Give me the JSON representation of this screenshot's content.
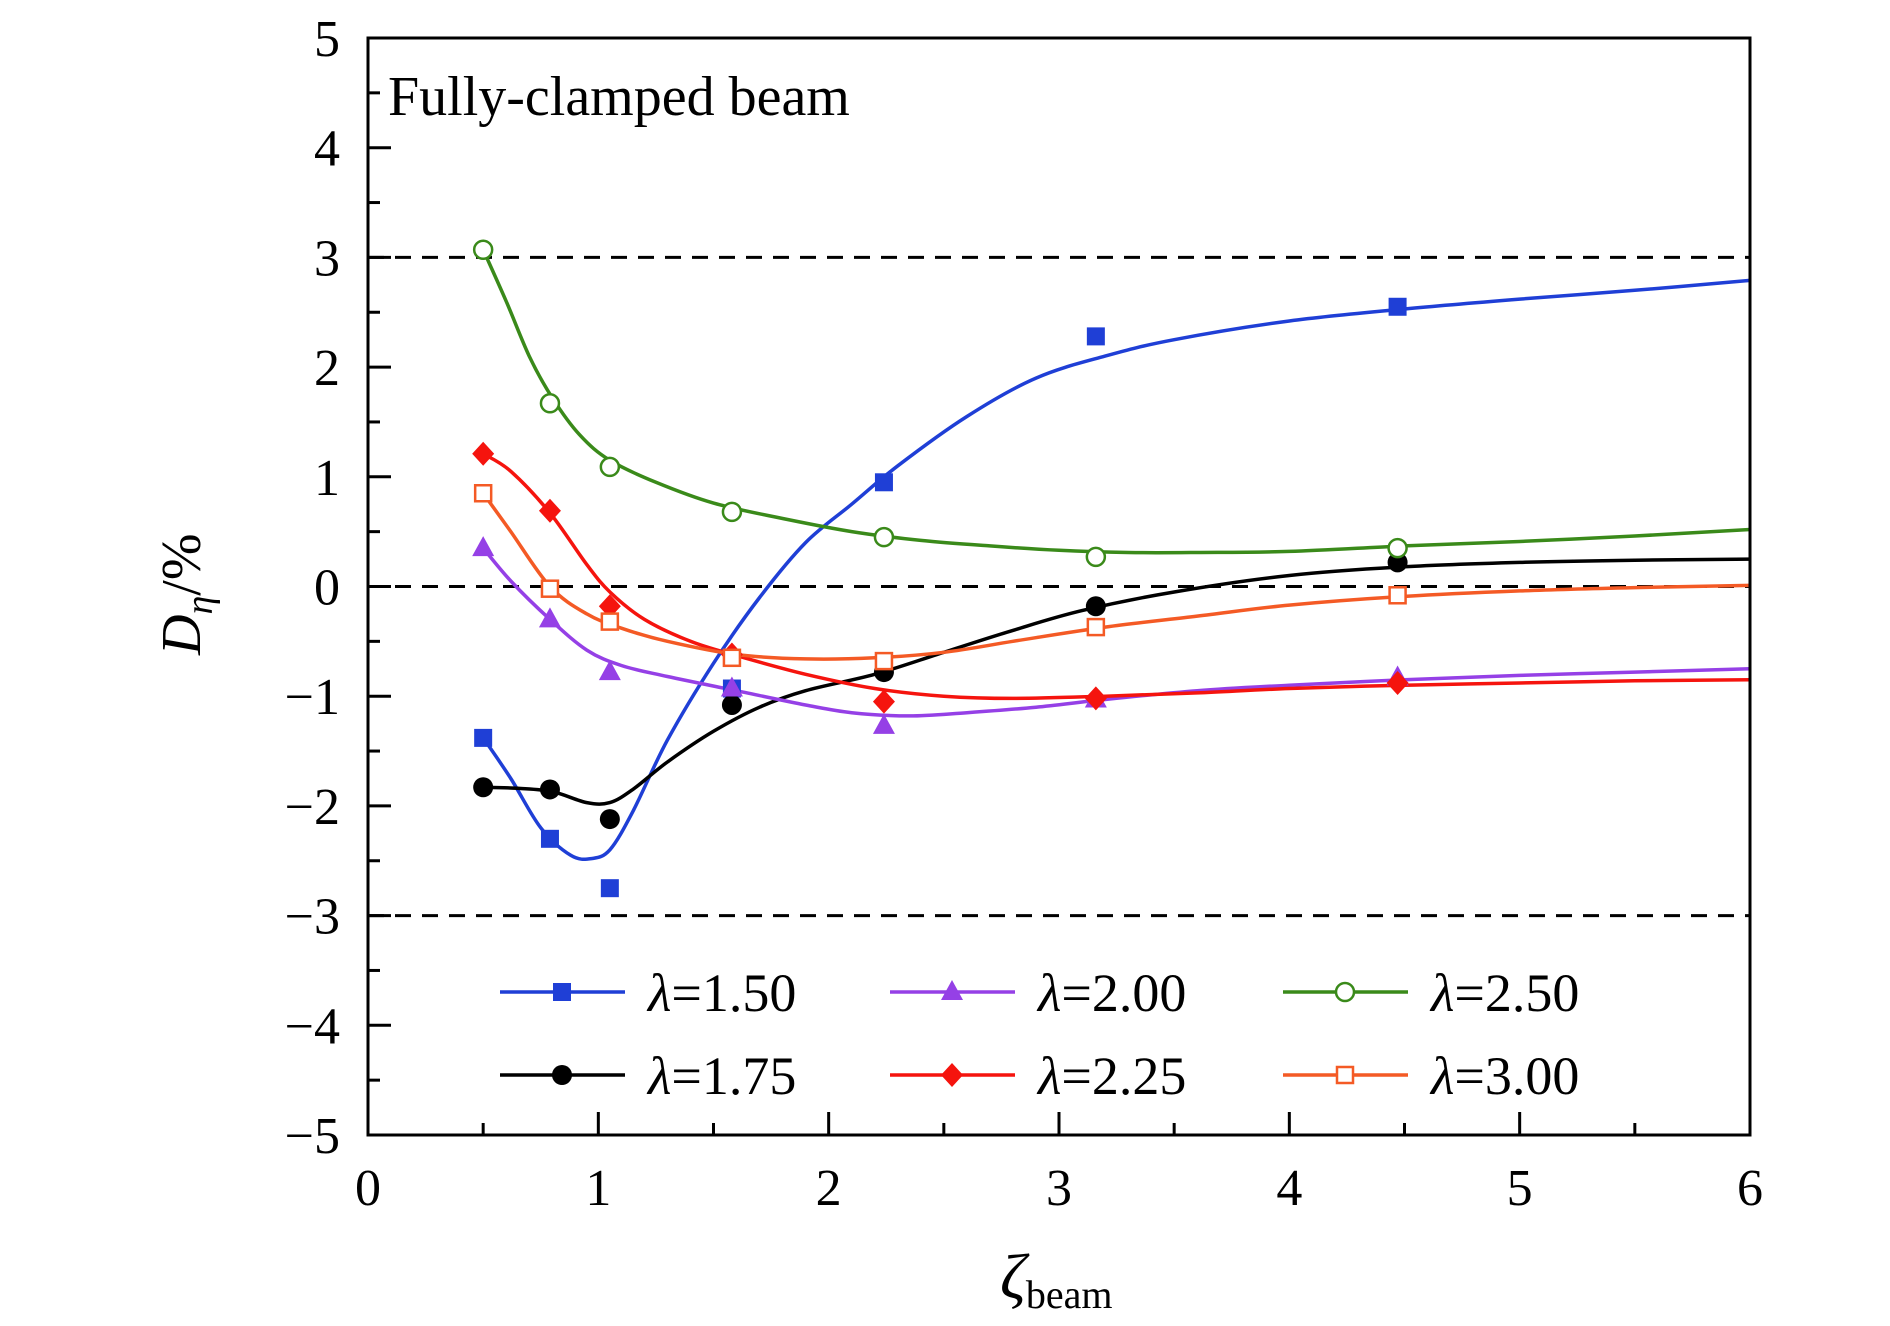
{
  "chart_data": {
    "type": "line",
    "annotation": "Fully-clamped beam",
    "xlabel": {
      "main": "ζ",
      "sub": "beam"
    },
    "ylabel": {
      "main": "D",
      "sub": "η",
      "suffix": "/%"
    },
    "xlim": [
      0,
      6
    ],
    "ylim": [
      -5,
      5
    ],
    "xticks": [
      "0",
      "1",
      "2",
      "3",
      "4",
      "5",
      "6"
    ],
    "yticks": [
      "−5",
      "−4",
      "−3",
      "−2",
      "−1",
      "0",
      "1",
      "2",
      "3",
      "4",
      "5"
    ],
    "reference_lines": [
      3,
      0,
      -3
    ],
    "grid": false,
    "legend_position": "bottom-center",
    "series": [
      {
        "name": "λ=1.50",
        "prefix": "λ",
        "value_text": "=1.50",
        "color": "#1f3fd6",
        "marker": "square-filled",
        "x": [
          0.5,
          0.79,
          1.05,
          1.58,
          2.24,
          3.16,
          4.47
        ],
        "y": [
          -1.38,
          -2.3,
          -2.75,
          -0.93,
          0.95,
          2.28,
          2.55
        ],
        "curve": [
          [
            0.5,
            -1.38
          ],
          [
            0.62,
            -1.75
          ],
          [
            0.75,
            -2.2
          ],
          [
            0.88,
            -2.45
          ],
          [
            0.97,
            -2.48
          ],
          [
            1.05,
            -2.4
          ],
          [
            1.15,
            -2.05
          ],
          [
            1.3,
            -1.4
          ],
          [
            1.5,
            -0.7
          ],
          [
            1.7,
            -0.1
          ],
          [
            1.9,
            0.4
          ],
          [
            2.1,
            0.75
          ],
          [
            2.3,
            1.1
          ],
          [
            2.6,
            1.55
          ],
          [
            2.9,
            1.9
          ],
          [
            3.2,
            2.1
          ],
          [
            3.5,
            2.25
          ],
          [
            4.0,
            2.42
          ],
          [
            4.5,
            2.53
          ],
          [
            5.0,
            2.62
          ],
          [
            5.5,
            2.7
          ],
          [
            6.0,
            2.79
          ]
        ]
      },
      {
        "name": "λ=1.75",
        "prefix": "λ",
        "value_text": "=1.75",
        "color": "#000000",
        "marker": "circle-filled",
        "x": [
          0.5,
          0.79,
          1.05,
          1.58,
          2.24,
          3.16,
          4.47
        ],
        "y": [
          -1.83,
          -1.85,
          -2.12,
          -1.08,
          -0.78,
          -0.18,
          0.22
        ],
        "curve": [
          [
            0.5,
            -1.83
          ],
          [
            0.65,
            -1.84
          ],
          [
            0.8,
            -1.87
          ],
          [
            0.95,
            -1.97
          ],
          [
            1.05,
            -1.97
          ],
          [
            1.15,
            -1.85
          ],
          [
            1.3,
            -1.6
          ],
          [
            1.5,
            -1.32
          ],
          [
            1.7,
            -1.1
          ],
          [
            1.9,
            -0.95
          ],
          [
            2.2,
            -0.8
          ],
          [
            2.5,
            -0.6
          ],
          [
            2.8,
            -0.4
          ],
          [
            3.1,
            -0.22
          ],
          [
            3.5,
            -0.05
          ],
          [
            4.0,
            0.1
          ],
          [
            4.5,
            0.18
          ],
          [
            5.0,
            0.22
          ],
          [
            5.5,
            0.24
          ],
          [
            6.0,
            0.25
          ]
        ]
      },
      {
        "name": "λ=2.00",
        "prefix": "λ",
        "value_text": "=2.00",
        "color": "#9540e6",
        "marker": "triangle-filled",
        "x": [
          0.5,
          0.79,
          1.05,
          1.58,
          2.24,
          3.16,
          4.47
        ],
        "y": [
          0.35,
          -0.3,
          -0.78,
          -0.93,
          -1.27,
          -1.03,
          -0.83
        ],
        "curve": [
          [
            0.5,
            0.35
          ],
          [
            0.62,
            0.05
          ],
          [
            0.79,
            -0.3
          ],
          [
            0.95,
            -0.58
          ],
          [
            1.1,
            -0.72
          ],
          [
            1.3,
            -0.82
          ],
          [
            1.6,
            -0.95
          ],
          [
            1.9,
            -1.08
          ],
          [
            2.1,
            -1.15
          ],
          [
            2.35,
            -1.18
          ],
          [
            2.6,
            -1.15
          ],
          [
            2.9,
            -1.1
          ],
          [
            3.2,
            -1.03
          ],
          [
            3.6,
            -0.95
          ],
          [
            4.0,
            -0.9
          ],
          [
            4.5,
            -0.85
          ],
          [
            5.0,
            -0.81
          ],
          [
            5.5,
            -0.78
          ],
          [
            6.0,
            -0.75
          ]
        ]
      },
      {
        "name": "λ=2.25",
        "prefix": "λ",
        "value_text": "=2.25",
        "color": "#f5140e",
        "marker": "diamond-filled",
        "x": [
          0.5,
          0.79,
          1.05,
          1.58,
          2.24,
          3.16,
          4.47
        ],
        "y": [
          1.21,
          0.69,
          -0.18,
          -0.62,
          -1.05,
          -1.02,
          -0.88
        ],
        "curve": [
          [
            0.5,
            1.21
          ],
          [
            0.62,
            1.05
          ],
          [
            0.79,
            0.67
          ],
          [
            0.95,
            0.2
          ],
          [
            1.05,
            -0.05
          ],
          [
            1.2,
            -0.3
          ],
          [
            1.4,
            -0.5
          ],
          [
            1.6,
            -0.63
          ],
          [
            1.9,
            -0.8
          ],
          [
            2.2,
            -0.93
          ],
          [
            2.5,
            -1.0
          ],
          [
            2.8,
            -1.02
          ],
          [
            3.2,
            -1.0
          ],
          [
            3.6,
            -0.97
          ],
          [
            4.0,
            -0.93
          ],
          [
            4.5,
            -0.9
          ],
          [
            5.0,
            -0.88
          ],
          [
            5.5,
            -0.86
          ],
          [
            6.0,
            -0.85
          ]
        ]
      },
      {
        "name": "λ=2.50",
        "prefix": "λ",
        "value_text": "=2.50",
        "color": "#3a8a1a",
        "marker": "circle-open",
        "x": [
          0.5,
          0.79,
          1.05,
          1.58,
          2.24,
          3.16,
          4.47
        ],
        "y": [
          3.07,
          1.67,
          1.09,
          0.68,
          0.45,
          0.27,
          0.35
        ],
        "curve": [
          [
            0.5,
            3.07
          ],
          [
            0.6,
            2.6
          ],
          [
            0.7,
            2.1
          ],
          [
            0.8,
            1.72
          ],
          [
            0.92,
            1.38
          ],
          [
            1.05,
            1.15
          ],
          [
            1.25,
            0.95
          ],
          [
            1.5,
            0.76
          ],
          [
            1.8,
            0.62
          ],
          [
            2.1,
            0.5
          ],
          [
            2.4,
            0.42
          ],
          [
            2.7,
            0.37
          ],
          [
            3.0,
            0.33
          ],
          [
            3.3,
            0.31
          ],
          [
            3.6,
            0.31
          ],
          [
            4.0,
            0.32
          ],
          [
            4.5,
            0.37
          ],
          [
            5.0,
            0.41
          ],
          [
            5.5,
            0.46
          ],
          [
            6.0,
            0.52
          ]
        ]
      },
      {
        "name": "λ=3.00",
        "prefix": "λ",
        "value_text": "=3.00",
        "color": "#f45a25",
        "marker": "square-open",
        "x": [
          0.5,
          0.79,
          1.05,
          1.58,
          2.24,
          3.16,
          4.47
        ],
        "y": [
          0.85,
          -0.02,
          -0.32,
          -0.65,
          -0.68,
          -0.37,
          -0.08
        ],
        "curve": [
          [
            0.5,
            0.85
          ],
          [
            0.62,
            0.5
          ],
          [
            0.79,
            0.0
          ],
          [
            0.95,
            -0.25
          ],
          [
            1.1,
            -0.38
          ],
          [
            1.3,
            -0.5
          ],
          [
            1.6,
            -0.62
          ],
          [
            1.9,
            -0.66
          ],
          [
            2.2,
            -0.65
          ],
          [
            2.5,
            -0.6
          ],
          [
            2.8,
            -0.5
          ],
          [
            3.2,
            -0.37
          ],
          [
            3.6,
            -0.27
          ],
          [
            4.0,
            -0.17
          ],
          [
            4.5,
            -0.09
          ],
          [
            5.0,
            -0.04
          ],
          [
            5.5,
            -0.01
          ],
          [
            6.0,
            0.01
          ]
        ]
      }
    ]
  }
}
